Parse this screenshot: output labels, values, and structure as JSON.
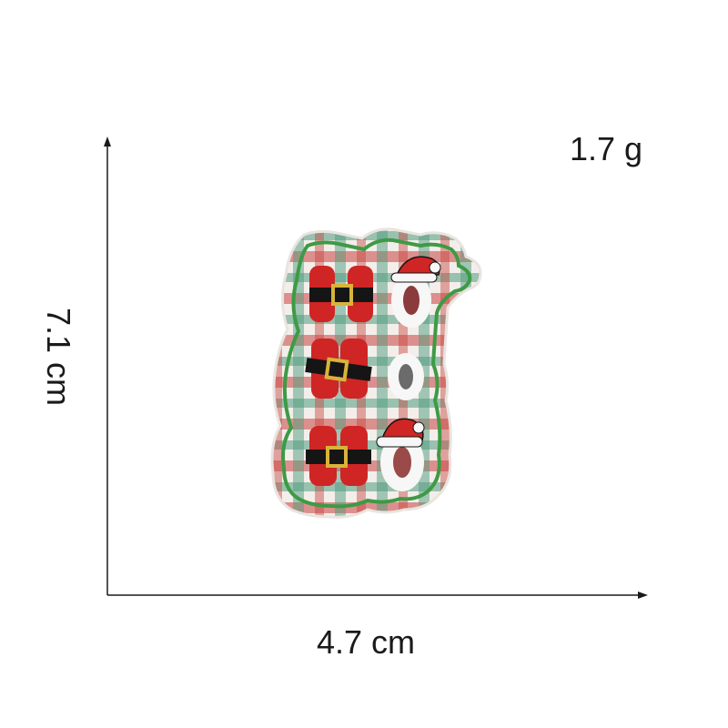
{
  "dimensions": {
    "weight_label": "1.7 g",
    "height_label": "7.1 cm",
    "width_label": "4.7 cm"
  },
  "product": {
    "letters": [
      "H",
      "O",
      "H",
      "O",
      "H",
      "O"
    ],
    "colors": {
      "plaid_red": "#c8433f",
      "plaid_green": "#4f9c7e",
      "border_green": "#3e9a45",
      "letter_red": "#cf2525",
      "belt_black": "#151515",
      "buckle_gold": "#d8b33a",
      "letter_white": "#f7f7f7"
    }
  }
}
